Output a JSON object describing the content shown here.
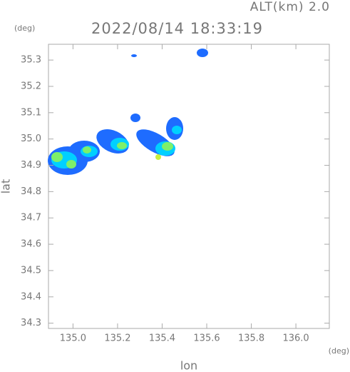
{
  "chart_data": {
    "type": "map",
    "title": "2022/08/14 18:33:19",
    "subtitle": "ALT(km) 2.0",
    "y_unit": "(deg)",
    "x_unit": "(deg)",
    "xlabel": "lon",
    "ylabel": "lat",
    "xlim": [
      134.89,
      136.15
    ],
    "ylim": [
      34.28,
      35.36
    ],
    "xticks": [
      {
        "value": 135.0,
        "label": "135.0"
      },
      135.2,
      135.4,
      135.6,
      135.8,
      {
        "value": 136.0,
        "label": "136.0"
      }
    ],
    "yticks": [
      35.3,
      35.2,
      35.1,
      {
        "value": 35.0,
        "label": "35.0"
      },
      34.9,
      34.8,
      34.7,
      34.6,
      34.5,
      34.4,
      34.3
    ]
  }
}
